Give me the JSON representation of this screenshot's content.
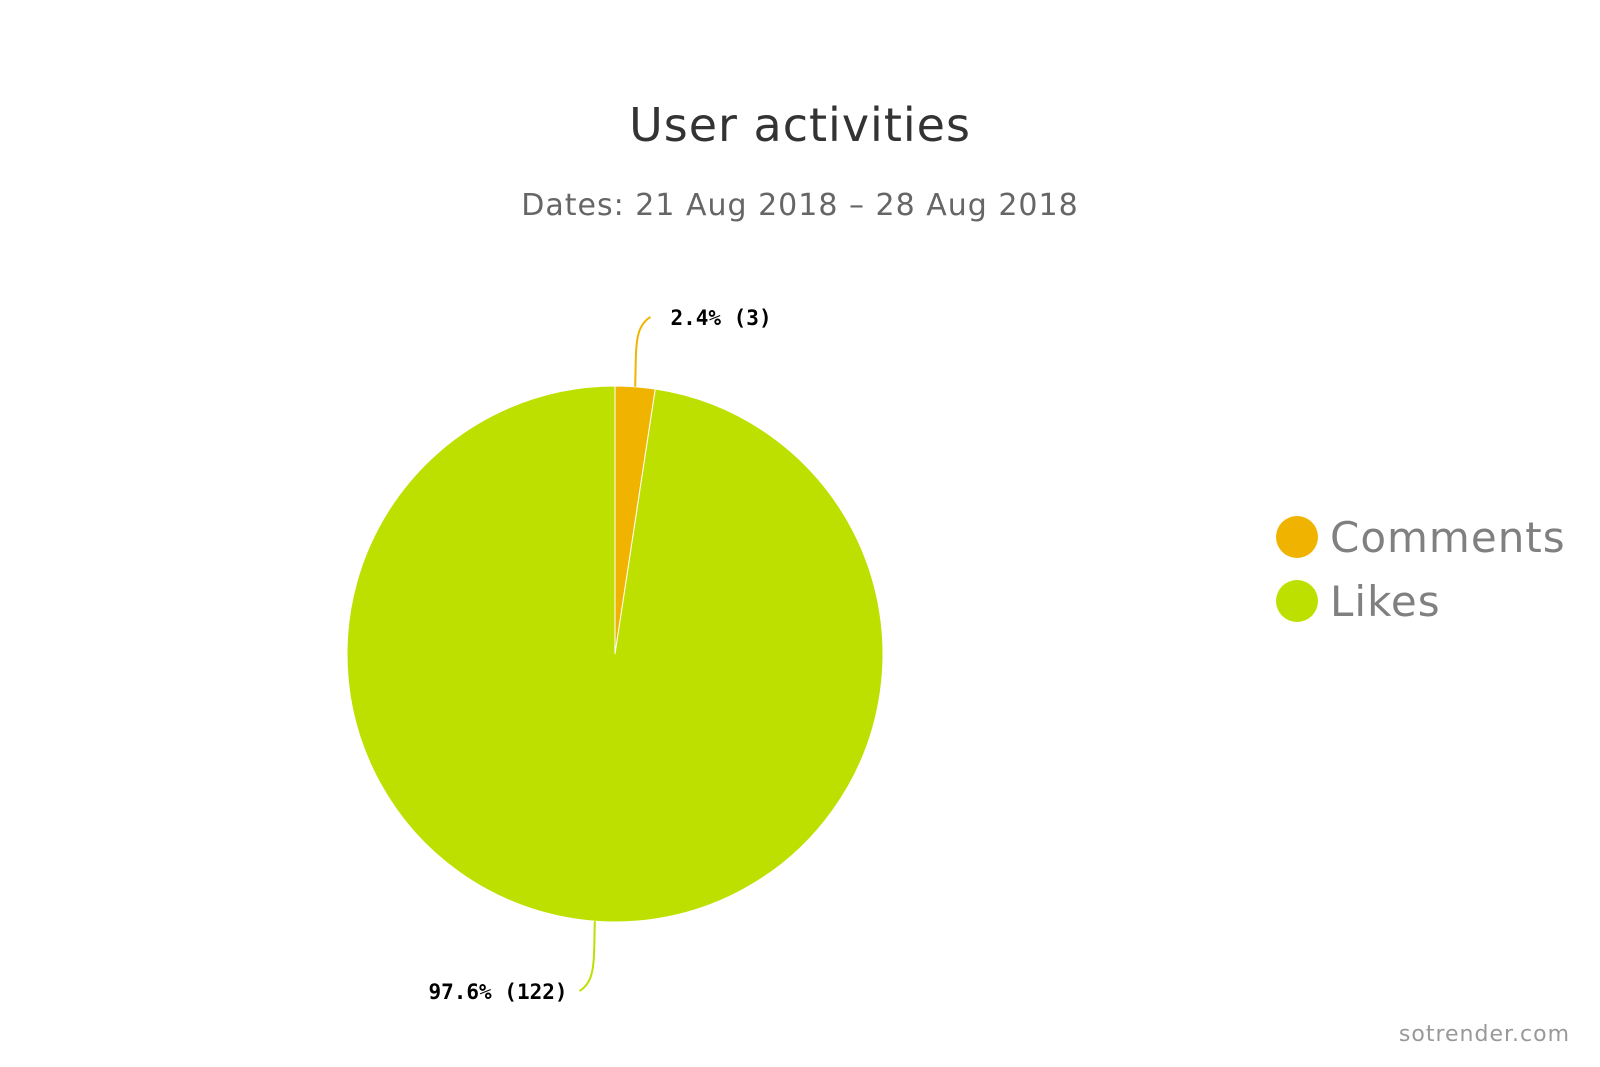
{
  "chart_data": {
    "type": "pie",
    "title": "User activities",
    "subtitle": "Dates: 21 Aug 2018 – 28 Aug 2018",
    "legend_position": "right",
    "slices": [
      {
        "name": "Comments",
        "value": 3,
        "percent": 2.4,
        "label": "2.4% (3)",
        "color": "#f0b400"
      },
      {
        "name": "Likes",
        "value": 122,
        "percent": 97.6,
        "label": "97.6% (122)",
        "color": "#bde000"
      }
    ]
  },
  "watermark": "sotrender.com"
}
